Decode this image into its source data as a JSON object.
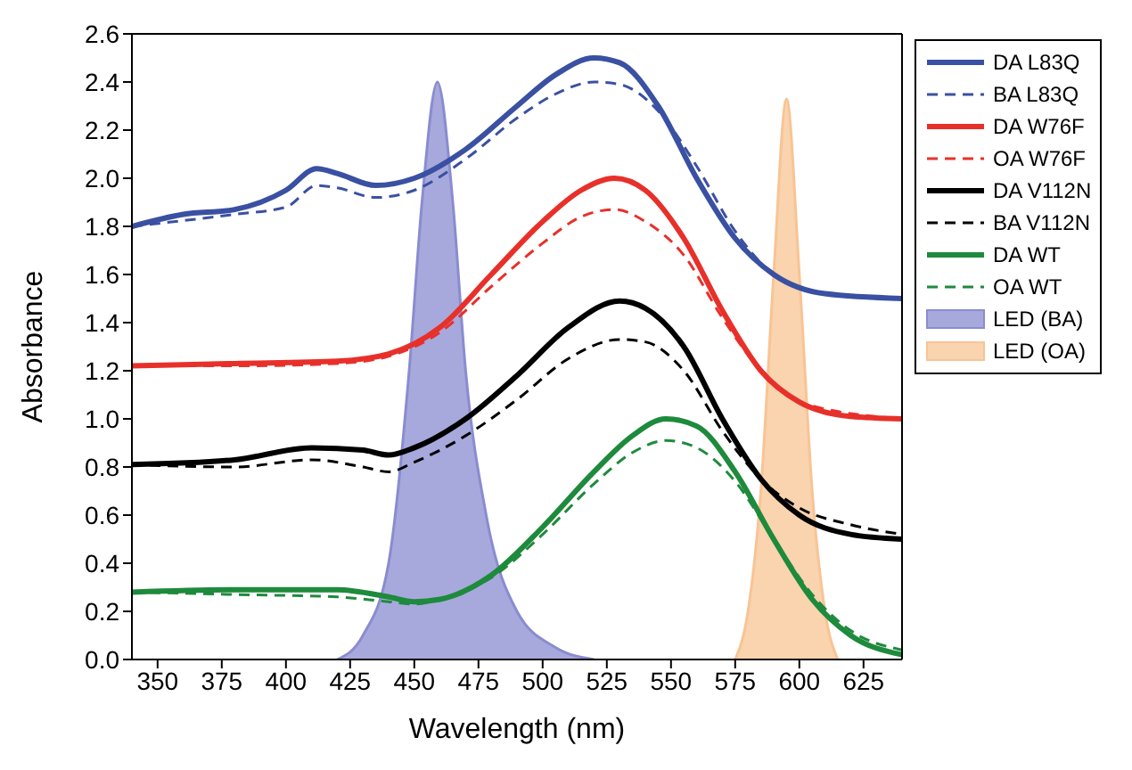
{
  "chart_data": {
    "type": "line",
    "xlabel": "Wavelength (nm)",
    "ylabel": "Absorbance",
    "xlim": [
      340,
      640
    ],
    "ylim": [
      0,
      2.6
    ],
    "xticks": [
      350,
      375,
      400,
      425,
      450,
      475,
      500,
      525,
      550,
      575,
      600,
      625
    ],
    "yticks": [
      {
        "value": 0,
        "label": "0.0"
      },
      {
        "value": 0.2,
        "label": "0.2"
      },
      {
        "value": 0.4,
        "label": "0.4"
      },
      {
        "value": 0.6,
        "label": "0.6"
      },
      {
        "value": 0.8,
        "label": "0.8"
      },
      {
        "value": 1,
        "label": "1.0"
      },
      {
        "value": 1.2,
        "label": "1.2"
      },
      {
        "value": 1.4,
        "label": "1.4"
      },
      {
        "value": 1.6,
        "label": "1.6"
      },
      {
        "value": 1.8,
        "label": "1.8"
      },
      {
        "value": 2,
        "label": "2.0"
      },
      {
        "value": 2.2,
        "label": "2.2"
      },
      {
        "value": 2.4,
        "label": "2.4"
      },
      {
        "value": 2.6,
        "label": "2.6"
      }
    ],
    "grid": false,
    "legend": "right",
    "marker": "none",
    "series": [
      {
        "name": "LED (BA)",
        "type": "area",
        "color": "#8a8cd0",
        "x": [
          420,
          430,
          440,
          448,
          453,
          459,
          465,
          470,
          478,
          490,
          505,
          520
        ],
        "values": [
          0,
          0.1,
          0.4,
          1.2,
          1.9,
          2.4,
          1.9,
          1.2,
          0.6,
          0.2,
          0.05,
          0
        ]
      },
      {
        "name": "LED (OA)",
        "type": "area",
        "color": "#f8c494",
        "x": [
          575,
          580,
          585,
          590,
          595,
          600,
          605,
          610,
          615
        ],
        "values": [
          0,
          0.2,
          0.7,
          1.6,
          2.33,
          1.6,
          0.7,
          0.2,
          0
        ]
      },
      {
        "name": "DA L83Q",
        "line_style": "solid",
        "color": "#3a50a2",
        "x": [
          340,
          360,
          380,
          400,
          412,
          420,
          435,
          450,
          470,
          490,
          505,
          520,
          530,
          545,
          560,
          575,
          590,
          610,
          640
        ],
        "values": [
          1.8,
          1.85,
          1.87,
          1.95,
          2.04,
          2.02,
          1.97,
          2.0,
          2.12,
          2.3,
          2.43,
          2.5,
          2.48,
          2.3,
          2.0,
          1.75,
          1.6,
          1.52,
          1.5
        ]
      },
      {
        "name": "BA L83Q",
        "line_style": "dashed",
        "color": "#3a50a2",
        "x": [
          340,
          380,
          400,
          412,
          420,
          435,
          450,
          470,
          490,
          505,
          520,
          530,
          545,
          560,
          575,
          590,
          610,
          640
        ],
        "values": [
          1.8,
          1.85,
          1.88,
          1.97,
          1.96,
          1.92,
          1.95,
          2.08,
          2.25,
          2.35,
          2.4,
          2.39,
          2.28,
          2.05,
          1.78,
          1.6,
          1.52,
          1.5
        ]
      },
      {
        "name": "DA W76F",
        "line_style": "solid",
        "color": "#e8302a",
        "x": [
          340,
          380,
          420,
          440,
          460,
          480,
          500,
          515,
          528,
          540,
          555,
          570,
          585,
          600,
          620,
          640
        ],
        "values": [
          1.22,
          1.23,
          1.24,
          1.27,
          1.38,
          1.6,
          1.82,
          1.95,
          2.0,
          1.95,
          1.75,
          1.45,
          1.2,
          1.07,
          1.01,
          1.0
        ]
      },
      {
        "name": "OA W76F",
        "line_style": "dashed",
        "color": "#e8302a",
        "x": [
          340,
          380,
          420,
          440,
          460,
          480,
          500,
          515,
          528,
          540,
          555,
          570,
          585,
          600,
          640
        ],
        "values": [
          1.22,
          1.22,
          1.23,
          1.26,
          1.36,
          1.55,
          1.73,
          1.84,
          1.87,
          1.82,
          1.68,
          1.42,
          1.2,
          1.07,
          1.0
        ]
      },
      {
        "name": "DA V112N",
        "line_style": "solid",
        "color": "#000000",
        "x": [
          340,
          380,
          410,
          430,
          440,
          450,
          470,
          490,
          510,
          530,
          540,
          555,
          570,
          585,
          600,
          620,
          640
        ],
        "values": [
          0.81,
          0.83,
          0.88,
          0.87,
          0.85,
          0.88,
          1.0,
          1.18,
          1.38,
          1.49,
          1.46,
          1.3,
          1.0,
          0.75,
          0.6,
          0.52,
          0.5
        ]
      },
      {
        "name": "BA V112N",
        "line_style": "dashed",
        "color": "#000000",
        "x": [
          340,
          380,
          410,
          430,
          440,
          450,
          470,
          490,
          510,
          530,
          540,
          555,
          570,
          585,
          600,
          620,
          640
        ],
        "values": [
          0.81,
          0.8,
          0.83,
          0.8,
          0.78,
          0.82,
          0.93,
          1.08,
          1.25,
          1.33,
          1.32,
          1.2,
          0.95,
          0.75,
          0.63,
          0.56,
          0.52
        ]
      },
      {
        "name": "DA WT",
        "line_style": "solid",
        "color": "#1e8a3c",
        "x": [
          340,
          380,
          420,
          440,
          450,
          460,
          480,
          500,
          520,
          535,
          548,
          560,
          575,
          590,
          605,
          620,
          640
        ],
        "values": [
          0.28,
          0.29,
          0.29,
          0.26,
          0.24,
          0.25,
          0.35,
          0.55,
          0.78,
          0.93,
          1.0,
          0.97,
          0.78,
          0.5,
          0.25,
          0.1,
          0.02
        ]
      },
      {
        "name": "OA WT",
        "line_style": "dashed",
        "color": "#1e8a3c",
        "x": [
          340,
          380,
          420,
          440,
          450,
          460,
          480,
          500,
          520,
          535,
          548,
          560,
          575,
          590,
          605,
          620,
          640
        ],
        "values": [
          0.28,
          0.27,
          0.26,
          0.24,
          0.23,
          0.25,
          0.34,
          0.52,
          0.73,
          0.86,
          0.91,
          0.88,
          0.74,
          0.5,
          0.27,
          0.12,
          0.04
        ]
      }
    ]
  }
}
